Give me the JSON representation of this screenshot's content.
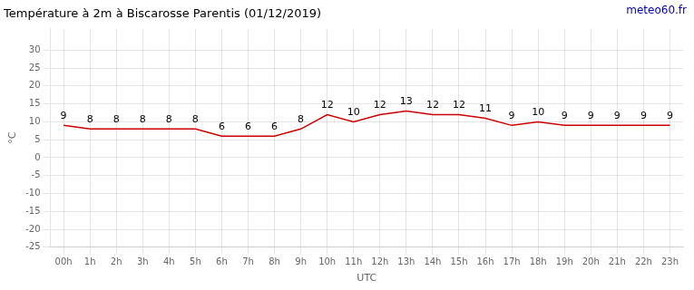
{
  "chart_data": {
    "type": "line",
    "title": "Température à 2m à Biscarosse Parentis (01/12/2019)",
    "xlabel": "UTC",
    "ylabel": "°C",
    "annotations": [
      {
        "text": "meteo60.fr",
        "color": "#0000cc"
      }
    ],
    "categories": [
      "00h",
      "1h",
      "2h",
      "3h",
      "4h",
      "5h",
      "6h",
      "7h",
      "8h",
      "9h",
      "10h",
      "11h",
      "12h",
      "13h",
      "14h",
      "15h",
      "16h",
      "17h",
      "18h",
      "19h",
      "20h",
      "21h",
      "22h",
      "23h"
    ],
    "values": [
      9,
      8,
      8,
      8,
      8,
      8,
      6,
      6,
      6,
      8,
      12,
      10,
      12,
      13,
      12,
      12,
      11,
      9,
      10,
      9,
      9,
      9,
      9,
      9
    ],
    "color": "#cc0000",
    "ylim": [
      -25,
      36
    ],
    "yticks": [
      -25,
      -20,
      -15,
      -10,
      -5,
      0,
      5,
      10,
      15,
      20,
      25,
      30
    ],
    "grid": true,
    "data_labels": true
  }
}
